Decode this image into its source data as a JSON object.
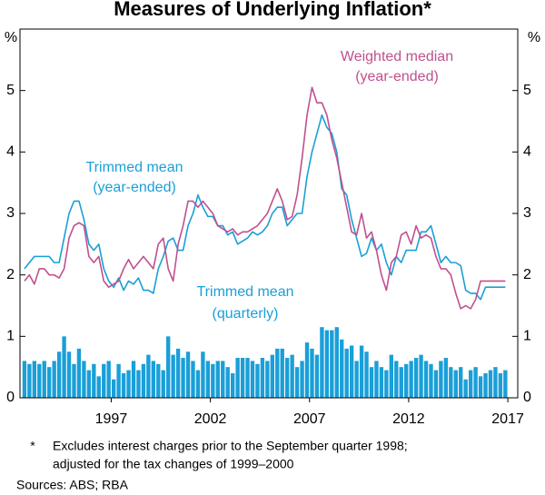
{
  "chart_data": {
    "type": "combo",
    "title": "Measures of Underlying Inflation*",
    "ylabel": "%",
    "y2label": "%",
    "xlim": [
      1992.9,
      2018.0
    ],
    "xticks": [
      {
        "value": 1997.5,
        "label": "1997"
      },
      {
        "value": 2002.5,
        "label": "2002"
      },
      {
        "value": 2007.5,
        "label": "2007"
      },
      {
        "value": 2012.5,
        "label": "2012"
      },
      {
        "value": 2017.5,
        "label": "2017"
      }
    ],
    "ylim": [
      0,
      6
    ],
    "yticks": [
      0,
      1,
      2,
      3,
      4,
      5
    ],
    "y2lim": [
      0,
      6
    ],
    "y2ticks": [
      0,
      1,
      2,
      3,
      4,
      5
    ],
    "x": [
      1993.125,
      1993.375,
      1993.625,
      1993.875,
      1994.125,
      1994.375,
      1994.625,
      1994.875,
      1995.125,
      1995.375,
      1995.625,
      1995.875,
      1996.125,
      1996.375,
      1996.625,
      1996.875,
      1997.125,
      1997.375,
      1997.625,
      1997.875,
      1998.125,
      1998.375,
      1998.625,
      1998.875,
      1999.125,
      1999.375,
      1999.625,
      1999.875,
      2000.125,
      2000.375,
      2000.625,
      2000.875,
      2001.125,
      2001.375,
      2001.625,
      2001.875,
      2002.125,
      2002.375,
      2002.625,
      2002.875,
      2003.125,
      2003.375,
      2003.625,
      2003.875,
      2004.125,
      2004.375,
      2004.625,
      2004.875,
      2005.125,
      2005.375,
      2005.625,
      2005.875,
      2006.125,
      2006.375,
      2006.625,
      2006.875,
      2007.125,
      2007.375,
      2007.625,
      2007.875,
      2008.125,
      2008.375,
      2008.625,
      2008.875,
      2009.125,
      2009.375,
      2009.625,
      2009.875,
      2010.125,
      2010.375,
      2010.625,
      2010.875,
      2011.125,
      2011.375,
      2011.625,
      2011.875,
      2012.125,
      2012.375,
      2012.625,
      2012.875,
      2013.125,
      2013.375,
      2013.625,
      2013.875,
      2014.125,
      2014.375,
      2014.625,
      2014.875,
      2015.125,
      2015.375,
      2015.625,
      2015.875,
      2016.125,
      2016.375,
      2016.625,
      2016.875,
      2017.125,
      2017.375
    ],
    "series": [
      {
        "name": "Trimmed mean",
        "subname": "(quarterly)",
        "type": "bar",
        "color": "#1a9fd8",
        "values": [
          0.6,
          0.55,
          0.6,
          0.55,
          0.6,
          0.5,
          0.6,
          0.75,
          1.0,
          0.75,
          0.55,
          0.8,
          0.6,
          0.45,
          0.55,
          0.35,
          0.55,
          0.6,
          0.3,
          0.55,
          0.4,
          0.45,
          0.6,
          0.45,
          0.55,
          0.7,
          0.6,
          0.55,
          0.45,
          1.0,
          0.7,
          0.8,
          0.65,
          0.75,
          0.6,
          0.45,
          0.75,
          0.6,
          0.55,
          0.6,
          0.6,
          0.5,
          0.4,
          0.65,
          0.65,
          0.65,
          0.6,
          0.55,
          0.65,
          0.6,
          0.7,
          0.8,
          0.8,
          0.65,
          0.7,
          0.5,
          0.6,
          0.9,
          0.8,
          0.7,
          1.15,
          1.1,
          1.1,
          1.15,
          0.95,
          0.8,
          0.85,
          0.6,
          0.85,
          0.75,
          0.5,
          0.6,
          0.5,
          0.45,
          0.7,
          0.6,
          0.5,
          0.55,
          0.6,
          0.65,
          0.7,
          0.6,
          0.55,
          0.45,
          0.6,
          0.65,
          0.5,
          0.45,
          0.5,
          0.3,
          0.45,
          0.5,
          0.35,
          0.4,
          0.45,
          0.5,
          0.4,
          0.45
        ]
      },
      {
        "name": "Trimmed mean",
        "subname": "(year-ended)",
        "type": "line",
        "color": "#1a9fd8",
        "values": [
          2.1,
          2.2,
          2.3,
          2.3,
          2.3,
          2.3,
          2.2,
          2.2,
          2.6,
          3.0,
          3.2,
          3.2,
          2.9,
          2.5,
          2.4,
          2.5,
          2.1,
          1.9,
          1.8,
          1.95,
          1.75,
          1.9,
          1.85,
          1.95,
          1.75,
          1.75,
          1.7,
          2.1,
          2.3,
          2.55,
          2.6,
          2.4,
          2.4,
          2.8,
          3.0,
          3.3,
          3.1,
          2.95,
          2.95,
          2.8,
          2.8,
          2.65,
          2.7,
          2.5,
          2.55,
          2.6,
          2.7,
          2.65,
          2.7,
          2.8,
          3.0,
          3.1,
          3.1,
          2.8,
          2.9,
          3.0,
          3.0,
          3.6,
          4.0,
          4.3,
          4.6,
          4.4,
          4.3,
          4.0,
          3.4,
          3.3,
          2.9,
          2.6,
          2.3,
          2.35,
          2.6,
          2.4,
          2.5,
          2.2,
          2.0,
          2.3,
          2.2,
          2.4,
          2.4,
          2.4,
          2.7,
          2.7,
          2.8,
          2.5,
          2.2,
          2.3,
          2.2,
          2.2,
          2.15,
          1.75,
          1.7,
          1.7,
          1.6,
          1.8,
          1.8,
          1.8,
          1.8,
          1.8
        ]
      },
      {
        "name": "Weighted median",
        "subname": "(year-ended)",
        "type": "line",
        "color": "#c0508e",
        "values": [
          1.9,
          2.0,
          1.85,
          2.1,
          2.1,
          2.0,
          2.0,
          1.95,
          2.1,
          2.6,
          2.8,
          2.85,
          2.8,
          2.3,
          2.2,
          2.3,
          1.9,
          1.8,
          1.85,
          1.9,
          2.1,
          2.25,
          2.1,
          2.2,
          2.3,
          2.2,
          2.1,
          2.5,
          2.6,
          2.1,
          1.9,
          2.5,
          2.8,
          3.2,
          3.2,
          3.1,
          3.2,
          3.1,
          3.0,
          2.8,
          2.75,
          2.7,
          2.75,
          2.65,
          2.7,
          2.7,
          2.75,
          2.8,
          2.9,
          3.0,
          3.2,
          3.4,
          3.2,
          2.9,
          2.95,
          3.3,
          3.9,
          4.6,
          5.05,
          4.8,
          4.8,
          4.6,
          4.2,
          3.9,
          3.5,
          3.1,
          2.7,
          2.65,
          3.0,
          2.6,
          2.7,
          2.4,
          2.0,
          1.75,
          2.2,
          2.3,
          2.65,
          2.7,
          2.5,
          2.8,
          2.6,
          2.65,
          2.6,
          2.3,
          2.1,
          2.1,
          2.0,
          1.7,
          1.45,
          1.5,
          1.45,
          1.6,
          1.9,
          1.9,
          1.9,
          1.9,
          1.9,
          1.9
        ]
      }
    ],
    "footnote": {
      "marker": "*",
      "lines": [
        "Excludes interest charges prior to the September quarter 1998;",
        "adjusted for the tax changes of 1999–2000"
      ]
    },
    "source": "Sources: ABS; RBA"
  }
}
